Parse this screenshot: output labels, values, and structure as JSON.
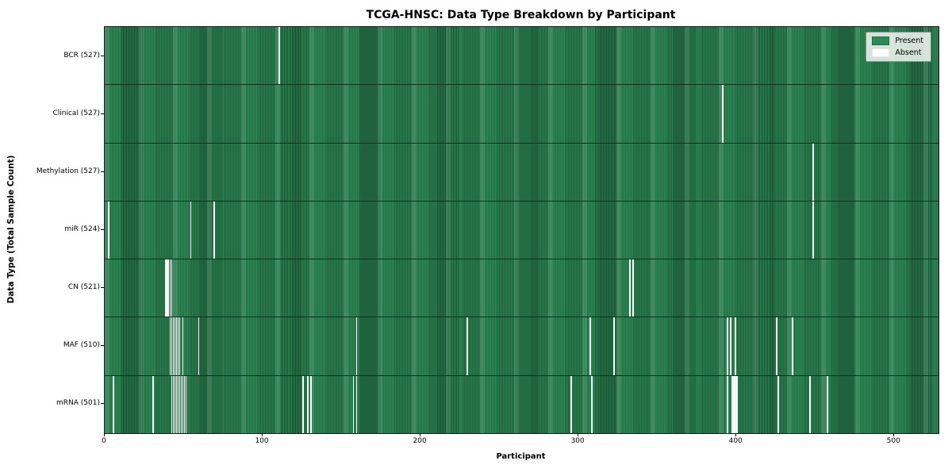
{
  "figure": {
    "title": "TCGA-HNSC: Data Type Breakdown by Participant",
    "xlabel": "Participant",
    "ylabel": "Data Type (Total Sample Count)"
  },
  "legend": {
    "present_label": "Present",
    "absent_label": "Absent"
  },
  "colors": {
    "present_green": "#2e8b57",
    "present_edge_dark": "#17502e",
    "absent_white": "#fafafa",
    "background": "#ffffff",
    "legend_background": "#eef3ee"
  },
  "chart_data": {
    "type": "heatmap",
    "title": "TCGA-HNSC: Data Type Breakdown by Participant",
    "xlabel": "Participant",
    "ylabel": "Data Type (Total Sample Count)",
    "x_range": [
      0,
      528
    ],
    "x_ticks": [
      0,
      100,
      200,
      300,
      400,
      500
    ],
    "legend_entries": [
      "Present",
      "Absent"
    ],
    "legend_position": "upper right",
    "grid": false,
    "rows": [
      {
        "label": "BCR (527)",
        "data_type": "BCR",
        "sample_count": 527,
        "absent_participants": [
          110
        ]
      },
      {
        "label": "Clinical (527)",
        "data_type": "Clinical",
        "sample_count": 527,
        "absent_participants": [
          391
        ]
      },
      {
        "label": "Methylation (527)",
        "data_type": "Methylation",
        "sample_count": 527,
        "absent_participants": [
          448
        ]
      },
      {
        "label": "miR (524)",
        "data_type": "miR",
        "sample_count": 524,
        "absent_participants": [
          2,
          54,
          69,
          448
        ]
      },
      {
        "label": "CN (521)",
        "data_type": "CN",
        "sample_count": 521,
        "absent_participants": [
          38,
          39,
          40,
          41,
          42,
          332,
          334
        ]
      },
      {
        "label": "MAF (510)",
        "data_type": "MAF",
        "sample_count": 510,
        "absent_participants": [
          41,
          42,
          43,
          44,
          45,
          46,
          47,
          49,
          59,
          159,
          229,
          307,
          322,
          394,
          396,
          399,
          425,
          435
        ]
      },
      {
        "label": "mRNA (501)",
        "data_type": "mRNA",
        "sample_count": 501,
        "absent_participants": [
          5,
          30,
          42,
          43,
          44,
          45,
          46,
          47,
          48,
          49,
          50,
          51,
          125,
          128,
          130,
          157,
          159,
          295,
          308,
          394,
          397,
          398,
          399,
          400,
          426,
          446,
          457
        ]
      }
    ]
  }
}
